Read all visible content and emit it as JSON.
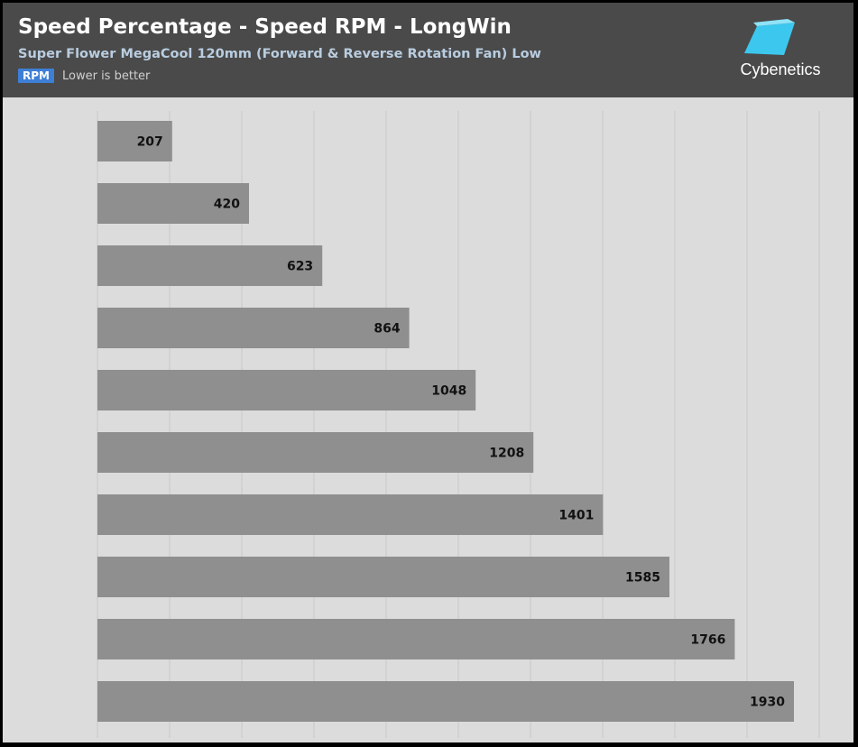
{
  "header": {
    "title": "Speed Percentage - Speed RPM - LongWin",
    "subtitle": "Super Flower MegaCool 120mm (Forward & Reverse Rotation Fan) Low",
    "unit_badge": "RPM",
    "note": "Lower is better",
    "logo_text": "Cybenetics"
  },
  "colors": {
    "header_bg": "#4a4a4a",
    "plot_bg": "#dcdcdc",
    "bar": "#8f8f8f",
    "badge": "#3e7fd6",
    "logo": "#3cc8ee"
  },
  "chart_data": {
    "type": "bar",
    "orientation": "horizontal",
    "title": "Speed Percentage - Speed RPM - LongWin",
    "subtitle": "Super Flower MegaCool 120mm (Forward & Reverse Rotation Fan) Low",
    "xlabel": "RPM",
    "categories": [
      "",
      "",
      "",
      "",
      "",
      "",
      "",
      "",
      "",
      ""
    ],
    "values": [
      207,
      420,
      623,
      864,
      1048,
      1208,
      1401,
      1585,
      1766,
      1930
    ],
    "xlim": [
      0,
      2000
    ],
    "grid": true,
    "legend": "none"
  }
}
